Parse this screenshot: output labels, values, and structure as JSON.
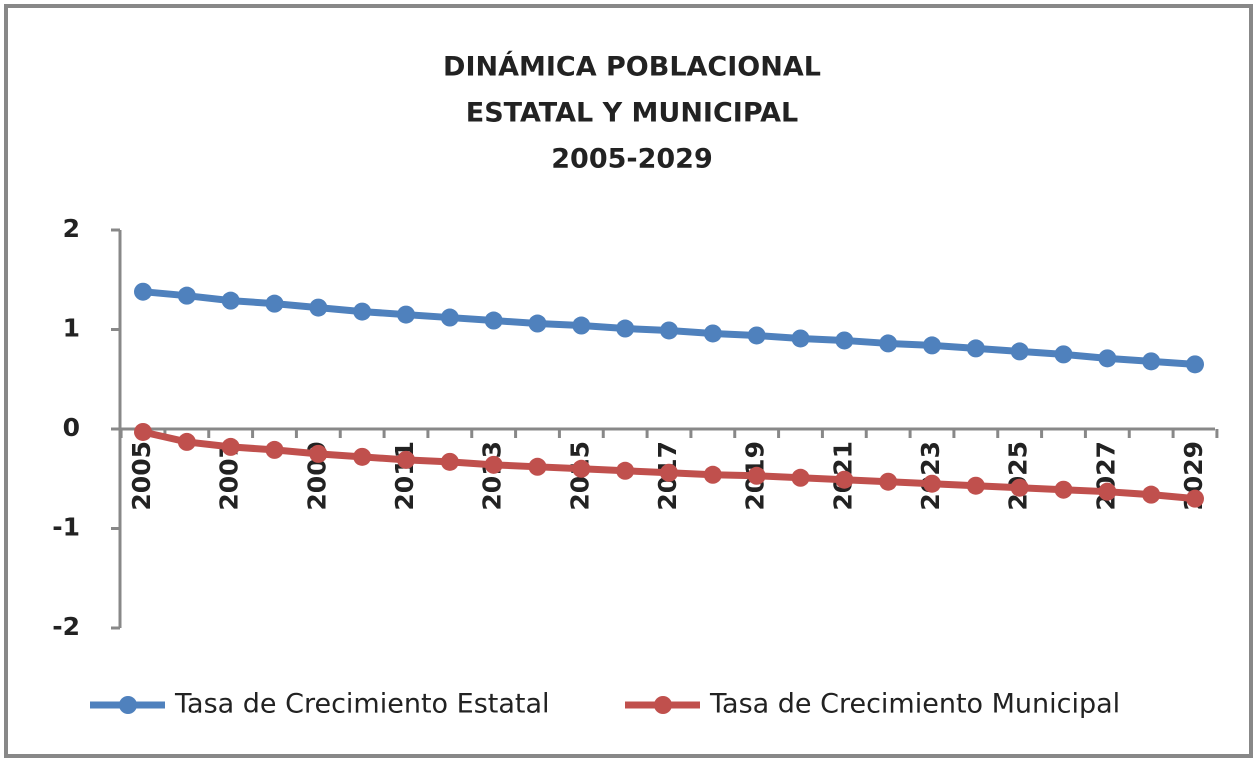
{
  "chart_data": {
    "type": "line",
    "title": [
      "DINÁMICA POBLACIONAL",
      "ESTATAL Y MUNICIPAL",
      "2005-2029"
    ],
    "categories": [
      "2005",
      null,
      "2007",
      null,
      "2009",
      null,
      "2011",
      null,
      "2013",
      null,
      "2015",
      null,
      "2017",
      null,
      "2019",
      null,
      "2021",
      null,
      "2023",
      null,
      "2025",
      null,
      "2027",
      null,
      "2029"
    ],
    "series": [
      {
        "name": "Tasa de Crecimiento Estatal",
        "color": "#4f81bd",
        "values": [
          1.38,
          1.34,
          1.29,
          1.26,
          1.22,
          1.18,
          1.15,
          1.12,
          1.09,
          1.06,
          1.04,
          1.01,
          0.99,
          0.96,
          0.94,
          0.91,
          0.89,
          0.86,
          0.84,
          0.81,
          0.78,
          0.75,
          0.71,
          0.68,
          0.65
        ]
      },
      {
        "name": "Tasa de Crecimiento Municipal",
        "color": "#c0504d",
        "values": [
          -0.03,
          -0.13,
          -0.18,
          -0.21,
          -0.25,
          -0.28,
          -0.31,
          -0.33,
          -0.36,
          -0.38,
          -0.4,
          -0.42,
          -0.44,
          -0.46,
          -0.47,
          -0.49,
          -0.51,
          -0.53,
          -0.55,
          -0.57,
          -0.59,
          -0.61,
          -0.63,
          -0.66,
          -0.7
        ]
      }
    ],
    "ylim": [
      -2,
      2
    ],
    "yticks": [
      -2,
      -1,
      0,
      1,
      2
    ],
    "legend": "bottom"
  }
}
